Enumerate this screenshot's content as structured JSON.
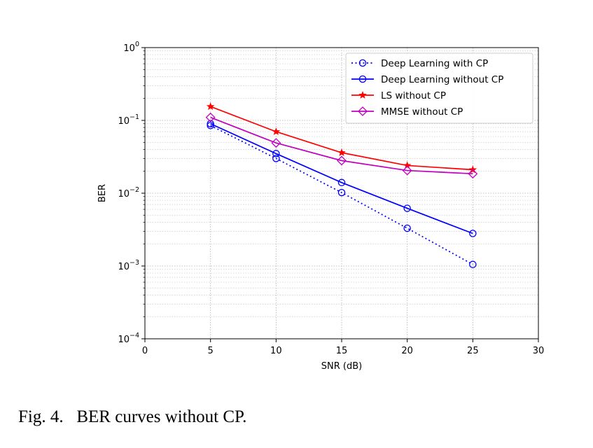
{
  "chart_data": {
    "type": "line",
    "xlabel": "SNR (dB)",
    "ylabel": "BER",
    "xlim": [
      0,
      30
    ],
    "ylim": [
      0.0001,
      1
    ],
    "yscale": "log",
    "x_ticks": [
      0,
      5,
      10,
      15,
      20,
      25,
      30
    ],
    "y_ticks": [
      {
        "value": 1,
        "base": "10",
        "exp": "0"
      },
      {
        "value": 0.1,
        "base": "10",
        "exp": "−1"
      },
      {
        "value": 0.01,
        "base": "10",
        "exp": "−2"
      },
      {
        "value": 0.001,
        "base": "10",
        "exp": "−3"
      },
      {
        "value": 0.0001,
        "base": "10",
        "exp": "−4"
      }
    ],
    "grid": true,
    "legend_position": "top-right",
    "x": [
      5,
      10,
      15,
      20,
      25
    ],
    "series": [
      {
        "name": "Deep Learning with CP",
        "color": "#0000ff",
        "linestyle": "dotted",
        "marker": "circle",
        "values": [
          0.085,
          0.03,
          0.0102,
          0.0033,
          0.00105
        ]
      },
      {
        "name": "Deep Learning without CP",
        "color": "#0000ff",
        "linestyle": "solid",
        "marker": "circle",
        "values": [
          0.09,
          0.035,
          0.014,
          0.0062,
          0.0028
        ]
      },
      {
        "name": "LS without CP",
        "color": "#ff0000",
        "linestyle": "solid",
        "marker": "star",
        "values": [
          0.155,
          0.07,
          0.036,
          0.024,
          0.021
        ]
      },
      {
        "name": "MMSE without CP",
        "color": "#bf00bf",
        "linestyle": "solid",
        "marker": "diamond",
        "values": [
          0.11,
          0.049,
          0.028,
          0.0205,
          0.0185
        ]
      }
    ]
  },
  "caption": "Fig. 4.   BER curves without CP."
}
